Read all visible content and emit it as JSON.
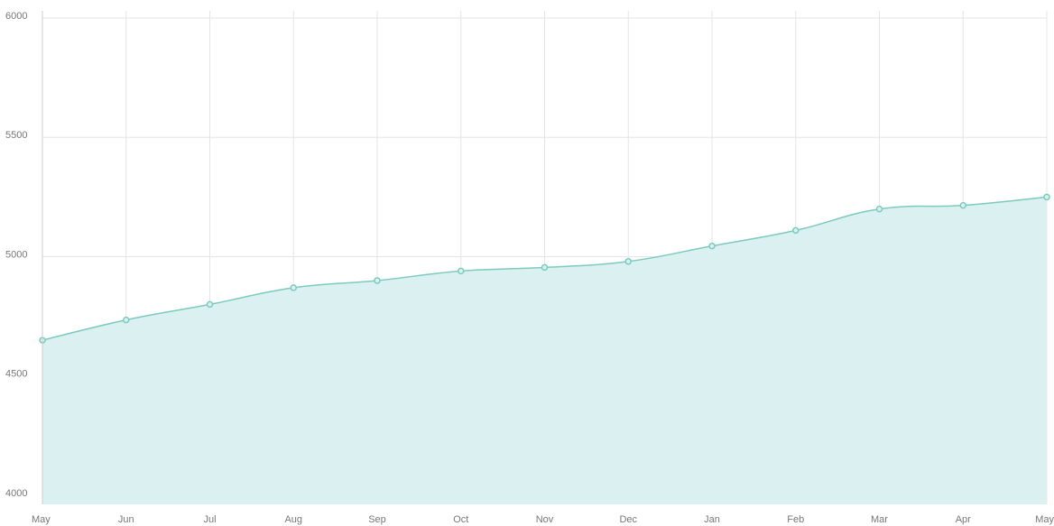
{
  "chart_data": {
    "type": "area",
    "categories": [
      "May",
      "Jun",
      "Jul",
      "Aug",
      "Sep",
      "Oct",
      "Nov",
      "Dec",
      "Jan",
      "Feb",
      "Mar",
      "Apr",
      "May"
    ],
    "values": [
      4650,
      4735,
      4800,
      4870,
      4900,
      4940,
      4955,
      4980,
      5045,
      5110,
      5200,
      5215,
      5250
    ],
    "color": "#7ccbbd",
    "fill": "#dbf0f0",
    "ylim": [
      4000,
      6000
    ],
    "yticks": [
      4000,
      4500,
      5000,
      5500,
      6000
    ],
    "grid": true
  }
}
